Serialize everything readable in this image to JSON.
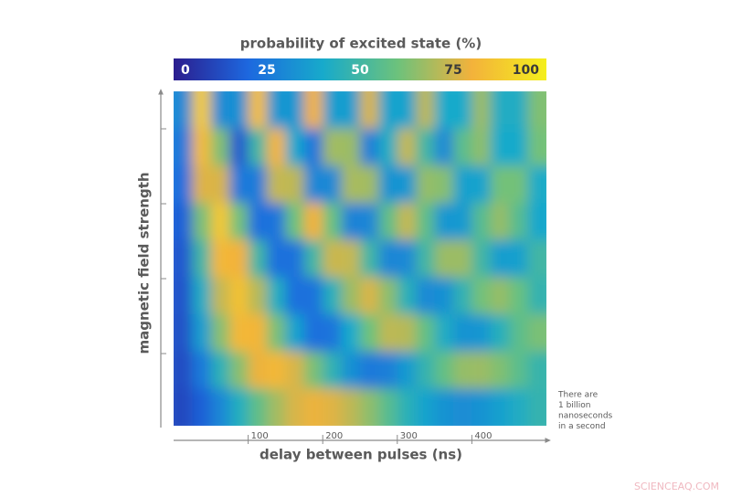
{
  "chart_data": {
    "type": "heatmap",
    "title": "probability of excited state (%)",
    "x_label": "delay between pulses (ns)",
    "y_label": "magnetic field strength",
    "x": [
      12.5,
      37.5,
      62.5,
      87.5,
      112.5,
      137.5,
      162.5,
      187.5,
      212.5,
      237.5,
      262.5,
      287.5,
      312.5,
      337.5,
      362.5,
      387.5,
      412.5,
      437.5,
      462.5,
      487.5
    ],
    "xlim": [
      0,
      500
    ],
    "xticks": [
      100,
      200,
      300,
      400
    ],
    "zlim": [
      0,
      100
    ],
    "zticks": [
      0,
      25,
      50,
      75,
      100
    ],
    "colormap": [
      "#2b1d8e",
      "#1d68df",
      "#17aacb",
      "#6cc27c",
      "#f3b23b",
      "#f4ef1c"
    ],
    "z": [
      [
        30,
        88,
        31,
        32,
        84,
        34,
        34,
        80,
        36,
        36,
        76,
        38,
        38,
        72,
        40,
        40,
        67,
        42,
        42,
        63
      ],
      [
        25,
        83,
        63,
        16,
        50,
        81,
        39,
        24,
        68,
        67,
        27,
        42,
        73,
        50,
        30,
        56,
        65,
        40,
        40,
        61
      ],
      [
        22,
        77,
        76,
        25,
        26,
        73,
        72,
        29,
        30,
        69,
        68,
        33,
        34,
        66,
        64,
        37,
        38,
        61,
        61,
        41
      ],
      [
        18,
        62,
        87,
        61,
        22,
        24,
        60,
        80,
        59,
        28,
        29,
        57,
        73,
        57,
        34,
        35,
        55,
        66,
        55,
        39
      ],
      [
        16,
        50,
        82,
        80,
        50,
        22,
        23,
        50,
        74,
        73,
        50,
        29,
        30,
        50,
        67,
        67,
        50,
        36,
        37,
        50
      ],
      [
        15,
        42,
        73,
        85,
        71,
        43,
        22,
        23,
        44,
        67,
        76,
        65,
        45,
        30,
        32,
        46,
        61,
        66,
        59,
        47
      ],
      [
        14,
        36,
        64,
        82,
        81,
        62,
        38,
        22,
        24,
        40,
        60,
        72,
        71,
        58,
        42,
        33,
        34,
        44,
        56,
        62
      ],
      [
        13,
        25,
        45,
        64,
        79,
        82,
        76,
        62,
        46,
        32,
        25,
        27,
        35,
        47,
        58,
        66,
        67,
        63,
        56,
        48
      ],
      [
        12,
        18,
        29,
        43,
        57,
        68,
        76,
        79,
        77,
        72,
        65,
        55,
        45,
        38,
        33,
        31,
        33,
        37,
        42,
        47
      ]
    ],
    "annotation": [
      "There are",
      "1 billion",
      "nanoseconds",
      "in a second"
    ],
    "watermark": "SCIENCEAQ.COM"
  }
}
